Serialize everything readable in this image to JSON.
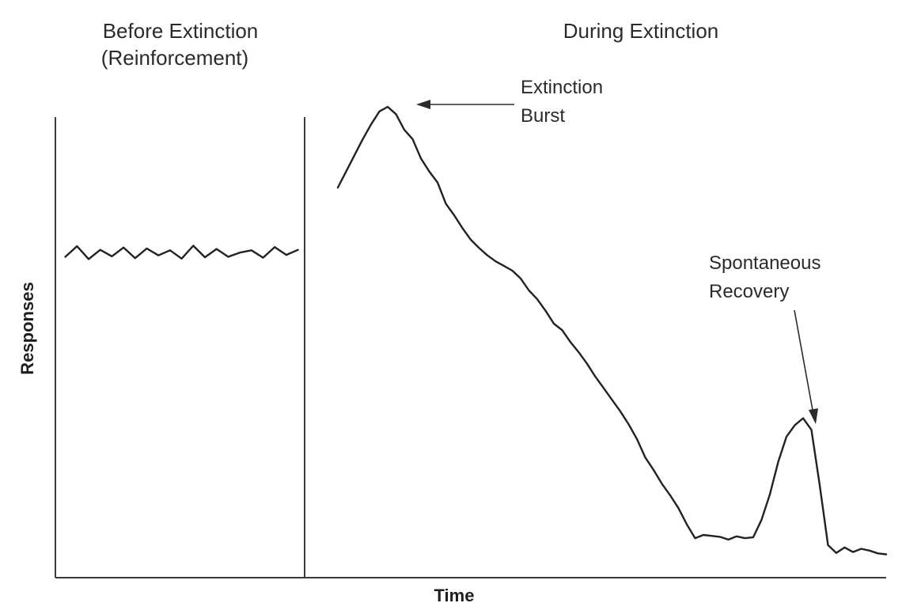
{
  "chart_data": {
    "type": "line",
    "panels": [
      {
        "title_line1": "Before Extinction",
        "title_line2": "(Reinforcement)"
      },
      {
        "title_line1": "During Extinction",
        "title_line2": ""
      }
    ],
    "xlabel": "Time",
    "ylabel": "Responses",
    "xlim": [
      0,
      100
    ],
    "ylim": [
      0,
      100
    ],
    "grid": false,
    "phase_boundary_x": 30,
    "series": [
      {
        "phase": "before",
        "x": [
          1.2,
          2.6,
          4,
          5.4,
          6.8,
          8.2,
          9.6,
          11,
          12.4,
          13.8,
          15.2,
          16.6,
          18,
          19.4,
          20.8,
          22.2,
          23.6,
          25,
          26.4,
          27.8,
          29.2
        ],
        "y": [
          67.5,
          69.8,
          67,
          69,
          67.6,
          69.5,
          67.2,
          69.3,
          67.8,
          68.9,
          67.1,
          69.9,
          67.4,
          69.2,
          67.5,
          68.4,
          68.9,
          67.3,
          69.6,
          67.9,
          69.0
        ]
      },
      {
        "phase": "during",
        "x": [
          34,
          35,
          36,
          37,
          38,
          39,
          40,
          41,
          42,
          43,
          44,
          45,
          46,
          47,
          48,
          49,
          50,
          51,
          52,
          53,
          54,
          55,
          56,
          57,
          58,
          59,
          60,
          61,
          62,
          63,
          64,
          65,
          66,
          67,
          68,
          69,
          70,
          71,
          72,
          73,
          74,
          75,
          76,
          77,
          78,
          79,
          80,
          81,
          82,
          83,
          84,
          85,
          86,
          87,
          88,
          89,
          90,
          91,
          92,
          93,
          94,
          95,
          96,
          97,
          98,
          99,
          100
        ],
        "y": [
          82.5,
          86,
          89.5,
          93,
          96.2,
          99,
          100,
          98.4,
          95,
          93,
          88.8,
          86,
          83.6,
          79,
          76.5,
          73.7,
          71.2,
          69.4,
          67.8,
          66.5,
          65.5,
          64.5,
          62.8,
          60.2,
          58.3,
          55.8,
          53,
          51.6,
          49,
          46.8,
          44.3,
          41.5,
          39,
          36.5,
          34,
          31.2,
          28,
          24,
          21.3,
          18.3,
          15.8,
          13,
          9.5,
          6.5,
          7.2,
          7,
          6.8,
          6.2,
          6.9,
          6.5,
          6.7,
          10.5,
          16,
          23,
          28.5,
          31,
          32.5,
          30,
          18,
          5,
          3.3,
          4.5,
          3.5,
          4.2,
          3.8,
          3.2,
          3
        ],
        "annotations": [
          {
            "text_line1": "Extinction",
            "text_line2": "Burst",
            "x": 40,
            "y": 100
          },
          {
            "text_line1": "Spontaneous",
            "text_line2": "Recovery",
            "x": 90,
            "y": 32.5
          }
        ]
      }
    ]
  }
}
